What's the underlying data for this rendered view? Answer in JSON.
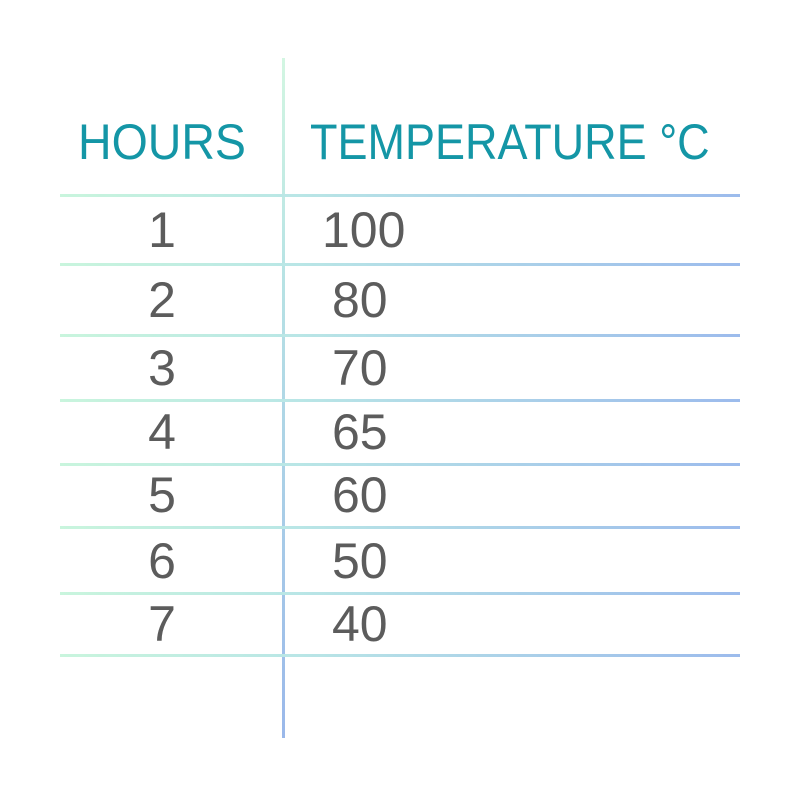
{
  "chart_data": {
    "type": "table",
    "columns": [
      "HOURS",
      "TEMPERATURE °C"
    ],
    "rows": [
      {
        "hours": "1",
        "temperature": "100"
      },
      {
        "hours": "2",
        "temperature": "80"
      },
      {
        "hours": "3",
        "temperature": "70"
      },
      {
        "hours": "4",
        "temperature": "65"
      },
      {
        "hours": "5",
        "temperature": "60"
      },
      {
        "hours": "6",
        "temperature": "50"
      },
      {
        "hours": "7",
        "temperature": "40"
      }
    ]
  },
  "colors": {
    "header": "#1496a6",
    "text": "#5c5c5c",
    "line_start": "#c9f5dd",
    "line_end": "#9cbbec"
  }
}
